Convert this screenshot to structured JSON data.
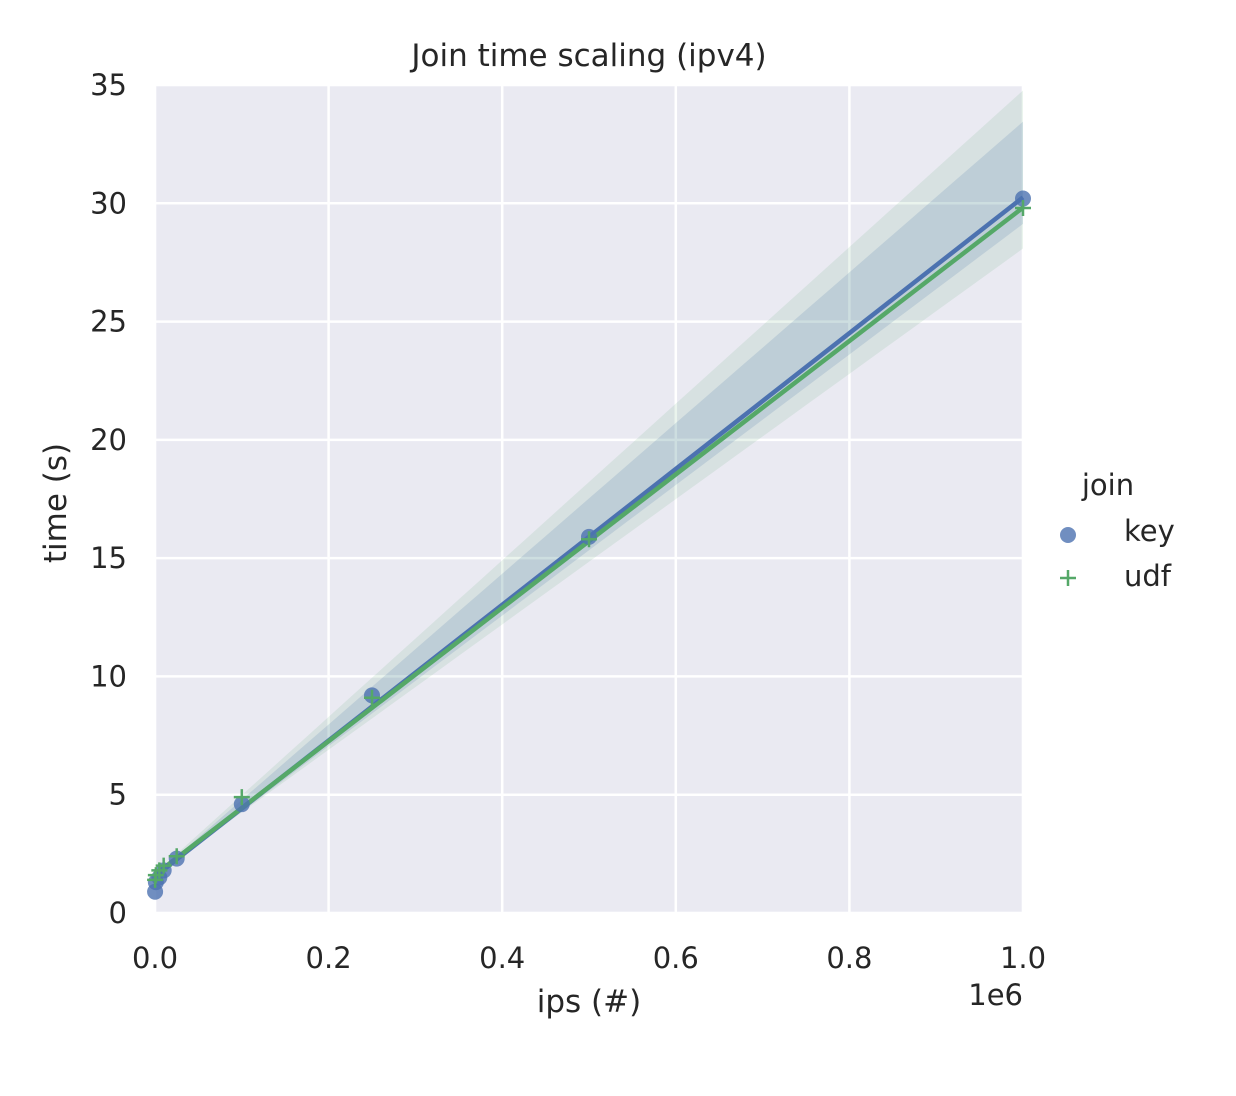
{
  "chart_data": {
    "type": "scatter",
    "title": "Join time scaling (ipv4)",
    "xlabel": "ips (#)",
    "ylabel": "time (s)",
    "x_offset_label": "1e6",
    "xlim": [
      0,
      1000000
    ],
    "ylim": [
      0,
      35
    ],
    "x_ticks": [
      0,
      200000,
      400000,
      600000,
      800000,
      1000000
    ],
    "x_tick_labels": [
      "0.0",
      "0.2",
      "0.4",
      "0.6",
      "0.8",
      "1.0"
    ],
    "y_ticks": [
      0,
      5,
      10,
      15,
      20,
      25,
      30,
      35
    ],
    "y_tick_labels": [
      "0",
      "5",
      "10",
      "15",
      "20",
      "25",
      "30",
      "35"
    ],
    "grid": true,
    "legend": {
      "title": "join",
      "placement": "right"
    },
    "series": [
      {
        "name": "key",
        "marker": "circle",
        "color": "#4c72b0",
        "x": [
          100,
          1000,
          5000,
          10000,
          25000,
          100000,
          250000,
          500000,
          1000000
        ],
        "y": [
          0.9,
          1.3,
          1.5,
          1.8,
          2.3,
          4.6,
          9.2,
          15.9,
          30.2
        ],
        "fit": {
          "intercept": 1.55,
          "slope": 2.87e-05
        }
      },
      {
        "name": "udf",
        "marker": "plus",
        "color": "#55a868",
        "x": [
          100,
          1000,
          5000,
          10000,
          25000,
          100000,
          250000,
          500000,
          1000000
        ],
        "y": [
          1.4,
          1.6,
          1.8,
          2.0,
          2.4,
          4.9,
          9.1,
          15.8,
          29.8
        ],
        "fit": {
          "intercept": 1.62,
          "slope": 2.82e-05
        }
      }
    ]
  }
}
